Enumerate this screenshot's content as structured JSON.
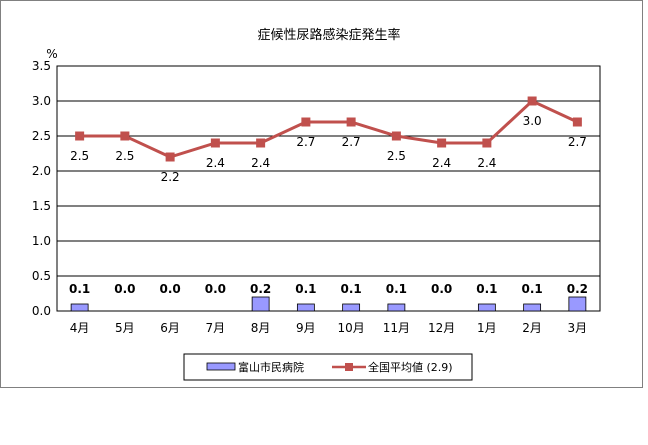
{
  "chart_data": {
    "type": "bar+line",
    "title": "症候性尿路感染症発生率",
    "ylabel": "%",
    "ylim": [
      0,
      3.5
    ],
    "yticks": [
      "0.0",
      "0.5",
      "1.0",
      "1.5",
      "2.0",
      "2.5",
      "3.0",
      "3.5"
    ],
    "categories": [
      "4月",
      "5月",
      "6月",
      "7月",
      "8月",
      "9月",
      "10月",
      "11月",
      "12月",
      "1月",
      "2月",
      "3月"
    ],
    "series": [
      {
        "name": "富山市民病院",
        "kind": "bar",
        "color": "#9999ff",
        "values": [
          0.1,
          0.0,
          0.0,
          0.0,
          0.2,
          0.1,
          0.1,
          0.1,
          0.0,
          0.1,
          0.1,
          0.2
        ],
        "labels": [
          "0.1",
          "0.0",
          "0.0",
          "0.0",
          "0.2",
          "0.1",
          "0.1",
          "0.1",
          "0.0",
          "0.1",
          "0.1",
          "0.2"
        ]
      },
      {
        "name": "全国平均値 (2.9)",
        "kind": "line",
        "color": "#c0504d",
        "values": [
          2.5,
          2.5,
          2.2,
          2.4,
          2.4,
          2.7,
          2.7,
          2.5,
          2.4,
          2.4,
          3.0,
          2.7
        ],
        "labels": [
          "2.5",
          "2.5",
          "2.2",
          "2.4",
          "2.4",
          "2.7",
          "2.7",
          "2.5",
          "2.4",
          "2.4",
          "3.0",
          "2.7"
        ]
      }
    ],
    "grid": true,
    "legend": "bottom"
  }
}
